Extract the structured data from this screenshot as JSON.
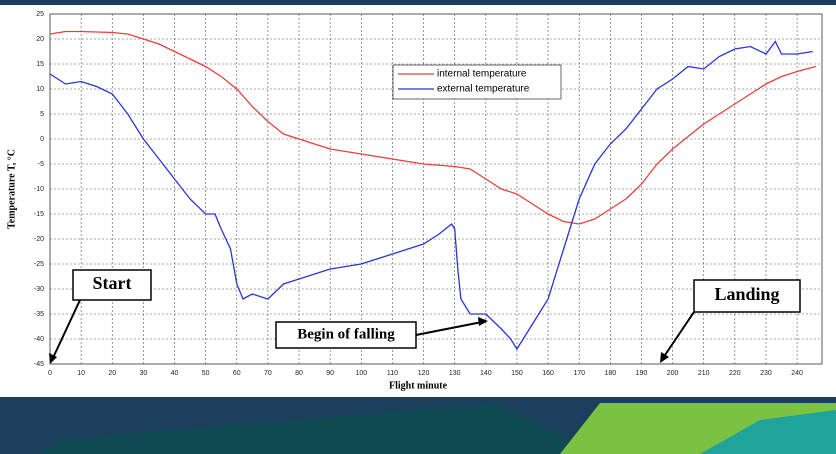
{
  "chart_data": {
    "type": "line",
    "xlabel": "Flight minute",
    "ylabel": "Temperature T, °C",
    "xlim": [
      0,
      248
    ],
    "ylim": [
      -45,
      25
    ],
    "xticks": [
      0,
      10,
      20,
      30,
      40,
      50,
      60,
      70,
      80,
      90,
      100,
      110,
      120,
      130,
      140,
      150,
      160,
      170,
      180,
      190,
      200,
      210,
      220,
      230,
      240
    ],
    "yticks": [
      -45,
      -40,
      -35,
      -30,
      -25,
      -20,
      -15,
      -10,
      -5,
      0,
      5,
      10,
      15,
      20,
      25
    ],
    "grid": true,
    "series": [
      {
        "name": "internal temperature",
        "color": "#e8413c",
        "x": [
          0,
          5,
          10,
          20,
          25,
          30,
          35,
          40,
          45,
          50,
          55,
          60,
          65,
          70,
          75,
          80,
          85,
          90,
          95,
          100,
          110,
          120,
          130,
          135,
          140,
          145,
          150,
          155,
          160,
          165,
          170,
          175,
          180,
          185,
          190,
          195,
          200,
          205,
          210,
          215,
          220,
          225,
          230,
          235,
          240,
          246
        ],
        "values": [
          21,
          21.5,
          21.5,
          21.3,
          21,
          20,
          19,
          17.5,
          16,
          14.5,
          12.5,
          10,
          6.5,
          3.5,
          1,
          0,
          -1,
          -2,
          -2.5,
          -3,
          -4,
          -5,
          -5.5,
          -6,
          -8,
          -10,
          -11,
          -13,
          -15,
          -16.5,
          -17,
          -16,
          -14,
          -12,
          -9,
          -5,
          -2,
          0.5,
          3,
          5,
          7,
          9,
          11,
          12.5,
          13.5,
          14.5
        ]
      },
      {
        "name": "external temperature",
        "color": "#2a35d6",
        "x": [
          0,
          5,
          10,
          15,
          20,
          25,
          30,
          35,
          40,
          45,
          50,
          53,
          55,
          58,
          60,
          62,
          65,
          70,
          75,
          80,
          90,
          100,
          110,
          120,
          125,
          129,
          130,
          131,
          132,
          135,
          140,
          145,
          148,
          150,
          152,
          155,
          160,
          165,
          170,
          175,
          180,
          185,
          190,
          195,
          200,
          205,
          210,
          215,
          220,
          225,
          230,
          233,
          235,
          240,
          245
        ],
        "values": [
          13,
          11,
          11.5,
          10.5,
          9,
          5,
          0,
          -4,
          -8,
          -12,
          -15,
          -15,
          -18,
          -22,
          -29,
          -32,
          -31,
          -32,
          -29,
          -28,
          -26,
          -25,
          -23,
          -21,
          -19,
          -17,
          -18,
          -26,
          -32,
          -35,
          -35,
          -38,
          -40,
          -42,
          -40,
          -37,
          -32,
          -22,
          -12,
          -5,
          -1,
          2,
          6,
          10,
          12,
          14.5,
          14,
          16.5,
          18,
          18.5,
          17,
          19.5,
          17,
          17,
          17.5
        ]
      }
    ],
    "annotations": [
      "Start",
      "Begin of falling",
      "Landing"
    ]
  }
}
